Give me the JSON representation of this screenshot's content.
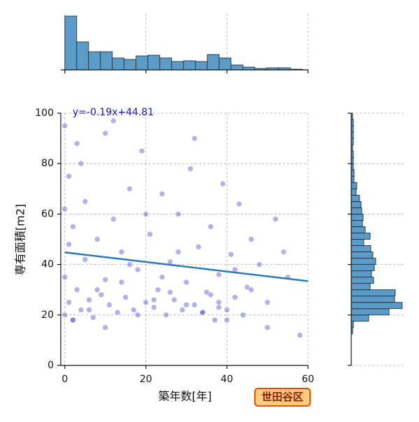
{
  "chart_data": {
    "type": "scatter",
    "x_label": "築年数[年]",
    "y_label": "専有面積[m2]",
    "annotation": "y=-0.19x+44.81",
    "badge": "世田谷区",
    "color": "#2424b8",
    "line_color": "#2a7ab8",
    "hist_color": "#5a9bc8",
    "grid": true,
    "xlim": [
      -1,
      60
    ],
    "ylim": [
      0,
      100
    ],
    "xticks": [
      0,
      20,
      40,
      60
    ],
    "yticks": [
      0,
      20,
      40,
      60,
      80,
      100
    ],
    "x": [
      0,
      0,
      0,
      0,
      1,
      1,
      1,
      2,
      2,
      3,
      3,
      4,
      5,
      5,
      6,
      7,
      8,
      9,
      10,
      10,
      11,
      12,
      13,
      14,
      15,
      16,
      17,
      18,
      19,
      20,
      21,
      22,
      23,
      24,
      25,
      26,
      27,
      28,
      29,
      30,
      31,
      32,
      33,
      34,
      35,
      36,
      37,
      38,
      38,
      39,
      40,
      41,
      42,
      43,
      44,
      45,
      46,
      48,
      50,
      52,
      55,
      58,
      2,
      6,
      10,
      14,
      18,
      22,
      26,
      30,
      34,
      38,
      42,
      46,
      50,
      54,
      4,
      8,
      12,
      16,
      20,
      24,
      28,
      32,
      36,
      40
    ],
    "y": [
      95,
      62,
      35,
      20,
      48,
      25,
      75,
      18,
      55,
      30,
      88,
      22,
      42,
      65,
      26,
      19,
      50,
      28,
      34,
      92,
      24,
      58,
      21,
      45,
      27,
      70,
      22,
      38,
      85,
      25,
      52,
      23,
      30,
      68,
      20,
      41,
      26,
      60,
      22,
      33,
      78,
      24,
      47,
      21,
      29,
      55,
      18,
      23,
      36,
      72,
      22,
      44,
      27,
      64,
      20,
      31,
      50,
      40,
      25,
      58,
      35,
      12,
      18,
      22,
      15,
      33,
      20,
      26,
      29,
      24,
      21,
      25,
      38,
      30,
      15,
      45,
      80,
      30,
      97,
      40,
      60,
      35,
      45,
      90,
      28,
      18
    ],
    "regression": {
      "x": [
        0,
        60
      ],
      "y": [
        44.81,
        33.41
      ]
    },
    "x_hist": {
      "bins": [
        0,
        2.93,
        5.86,
        8.79,
        11.72,
        14.65,
        17.58,
        20.51,
        23.44,
        26.37,
        29.3,
        32.23,
        35.16,
        38.09,
        41.02,
        43.95,
        46.88,
        49.81,
        52.74,
        55.67,
        58.6
      ],
      "counts": [
        77,
        40,
        26,
        26,
        17,
        15,
        20,
        21,
        17,
        12,
        13,
        12,
        22,
        17,
        7,
        4,
        2,
        3,
        3,
        1
      ]
    },
    "y_hist": {
      "bins": [
        12.5,
        15,
        17.5,
        20,
        22.5,
        25,
        27.5,
        30,
        32.5,
        35,
        37.5,
        40,
        42.5,
        45,
        47.5,
        50,
        52.5,
        55,
        57.5,
        60,
        62.5,
        65,
        67.5,
        70,
        72.5,
        75,
        77.5,
        80,
        82.5,
        85,
        87.5,
        90,
        92.5,
        95,
        97.5,
        100
      ],
      "counts": [
        2,
        3,
        25,
        54,
        73,
        62,
        63,
        27,
        32,
        29,
        33,
        35,
        31,
        28,
        18,
        27,
        20,
        16,
        17,
        15,
        14,
        12,
        7,
        8,
        4,
        4,
        3,
        3,
        3,
        2,
        3,
        3,
        3,
        3,
        2
      ]
    }
  }
}
